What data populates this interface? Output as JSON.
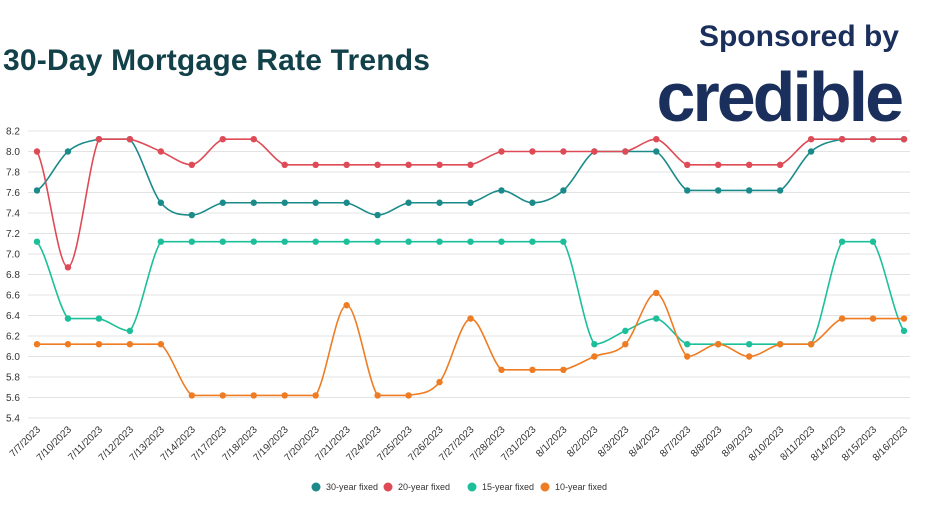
{
  "header": {
    "title": "30-Day Mortgage Rate Trends",
    "sponsor_text": "Sponsored by",
    "sponsor_logo": "credible"
  },
  "colors": {
    "title": "#12414a",
    "brand": "#1b2f5c",
    "grid": "#e3e3e3"
  },
  "chart_data": {
    "type": "line",
    "title": "30-Day Mortgage Rate Trends",
    "xlabel": "",
    "ylabel": "",
    "ylim": [
      5.4,
      8.2
    ],
    "yticks": [
      "8.2",
      "8.0",
      "7.8",
      "7.6",
      "7.4",
      "7.2",
      "7.0",
      "6.8",
      "6.6",
      "6.4",
      "6.2",
      "6.0",
      "5.8",
      "5.6",
      "5.4"
    ],
    "grid": true,
    "legend_position": "bottom",
    "categories": [
      "7/7/2023",
      "7/10/2023",
      "7/11/2023",
      "7/12/2023",
      "7/13/2023",
      "7/14/2023",
      "7/17/2023",
      "7/18/2023",
      "7/19/2023",
      "7/20/2023",
      "7/21/2023",
      "7/24/2023",
      "7/25/2023",
      "7/26/2023",
      "7/27/2023",
      "7/28/2023",
      "7/31/2023",
      "8/1/2023",
      "8/2/2023",
      "8/3/2023",
      "8/4/2023",
      "8/7/2023",
      "8/8/2023",
      "8/9/2023",
      "8/10/2023",
      "8/11/2023",
      "8/14/2023",
      "8/15/2023",
      "8/16/2023"
    ],
    "series": [
      {
        "name": "30-year fixed",
        "color": "#1a8a8a",
        "values": [
          7.62,
          8.0,
          8.12,
          8.12,
          7.5,
          7.38,
          7.5,
          7.5,
          7.5,
          7.5,
          7.5,
          7.38,
          7.5,
          7.5,
          7.5,
          7.62,
          7.5,
          7.62,
          8.0,
          8.0,
          8.0,
          7.62,
          7.62,
          7.62,
          7.62,
          8.0,
          8.12,
          8.12,
          8.12
        ]
      },
      {
        "name": "20-year fixed",
        "color": "#de4a55",
        "values": [
          8.0,
          6.87,
          8.12,
          8.12,
          8.0,
          7.87,
          8.12,
          8.12,
          7.87,
          7.87,
          7.87,
          7.87,
          7.87,
          7.87,
          7.87,
          8.0,
          8.0,
          8.0,
          8.0,
          8.0,
          8.12,
          7.87,
          7.87,
          7.87,
          7.87,
          8.12,
          8.12,
          8.12,
          8.12
        ]
      },
      {
        "name": "15-year fixed",
        "color": "#1dbf9b",
        "values": [
          7.12,
          6.37,
          6.37,
          6.25,
          7.12,
          7.12,
          7.12,
          7.12,
          7.12,
          7.12,
          7.12,
          7.12,
          7.12,
          7.12,
          7.12,
          7.12,
          7.12,
          7.12,
          6.12,
          6.25,
          6.37,
          6.12,
          6.12,
          6.12,
          6.12,
          6.12,
          7.12,
          7.12,
          6.25
        ]
      },
      {
        "name": "10-year fixed",
        "color": "#ef7c22",
        "values": [
          6.12,
          6.12,
          6.12,
          6.12,
          6.12,
          5.62,
          5.62,
          5.62,
          5.62,
          5.62,
          6.5,
          5.62,
          5.62,
          5.75,
          6.37,
          5.87,
          5.87,
          5.87,
          6.0,
          6.12,
          6.62,
          6.0,
          6.12,
          6.0,
          6.12,
          6.12,
          6.37,
          6.37,
          6.37
        ]
      }
    ]
  }
}
